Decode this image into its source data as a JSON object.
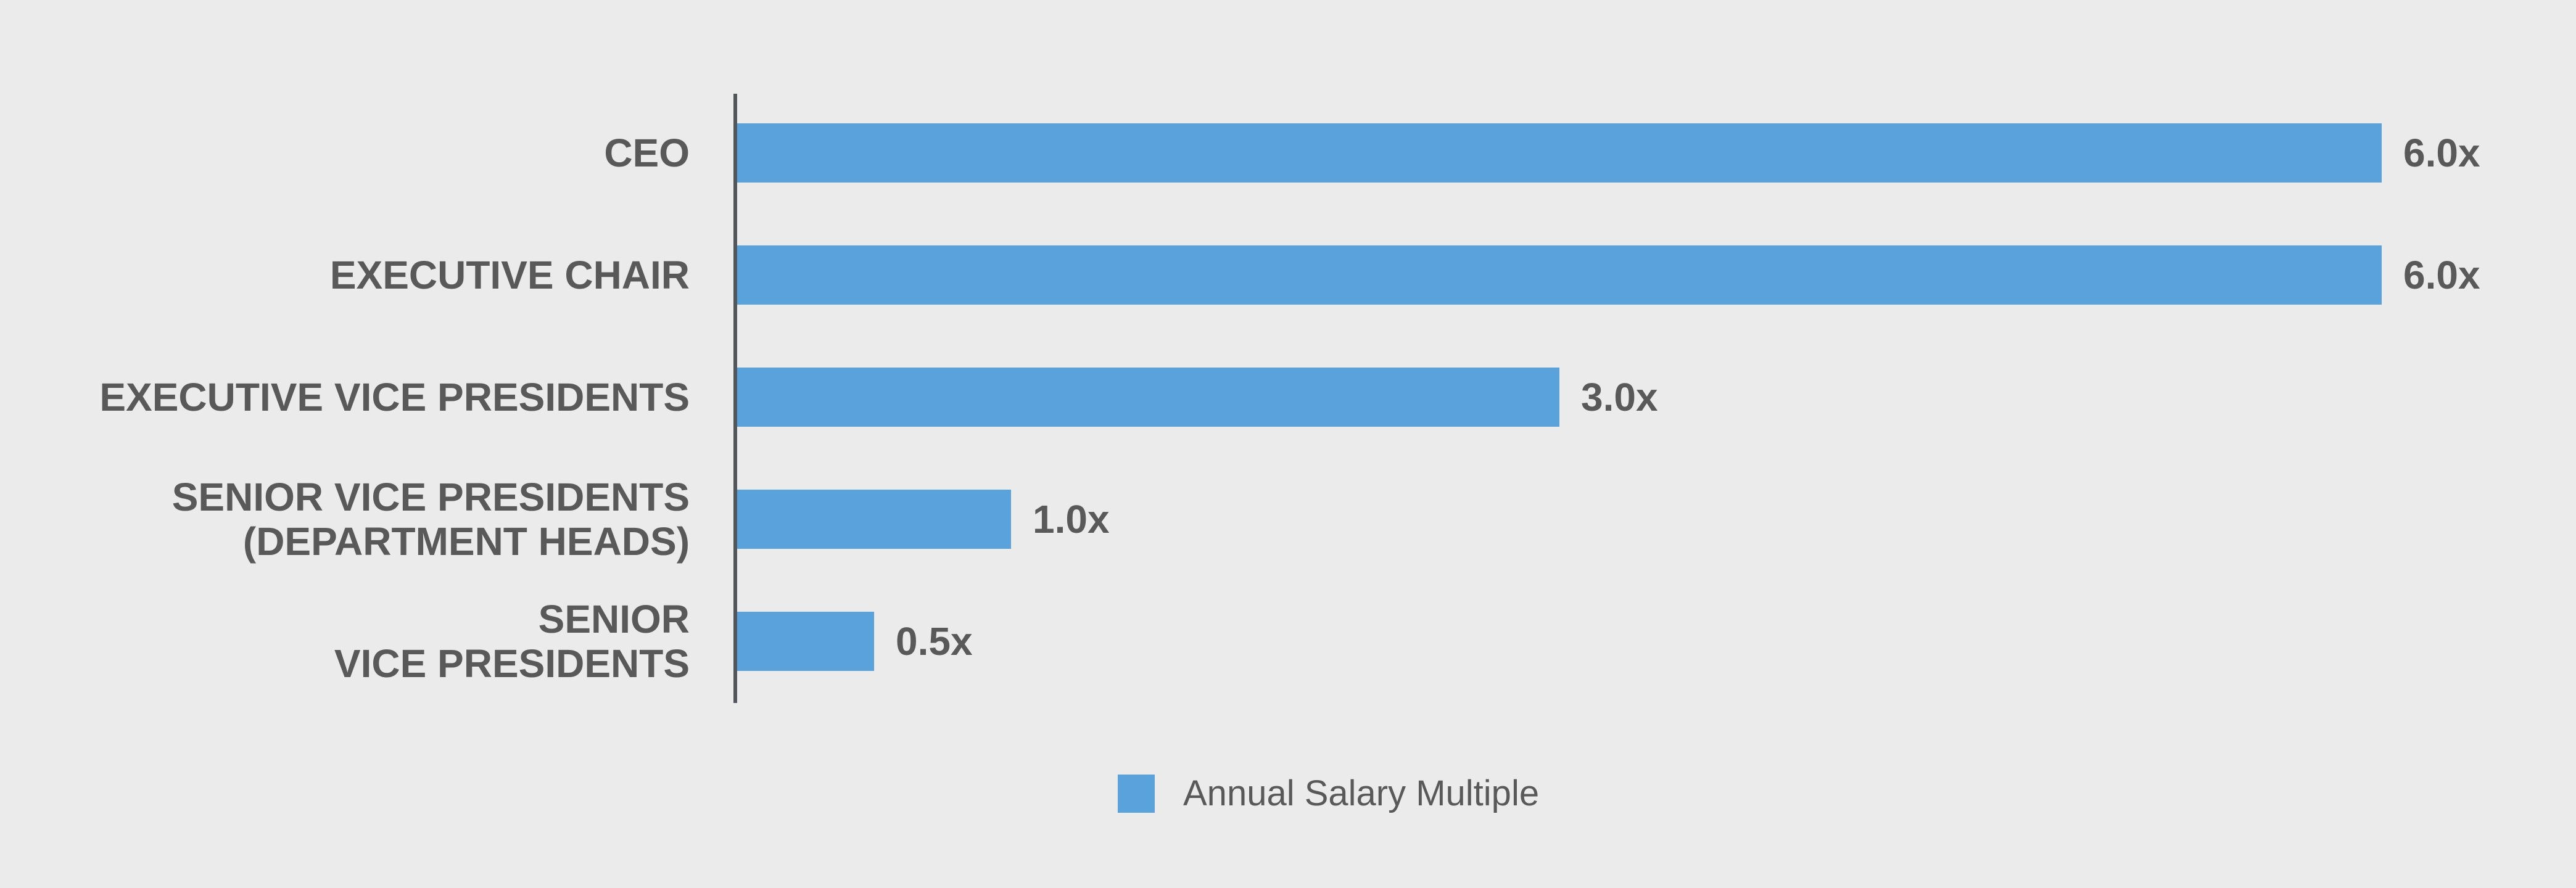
{
  "chart_data": {
    "type": "bar",
    "orientation": "horizontal",
    "title": "",
    "categories": [
      "CEO",
      "EXECUTIVE CHAIR",
      "EXECUTIVE VICE PRESIDENTS",
      "SENIOR VICE PRESIDENTS (DEPARTMENT HEADS)",
      "SENIOR VICE PRESIDENTS"
    ],
    "category_lines": [
      [
        "CEO"
      ],
      [
        "EXECUTIVE CHAIR"
      ],
      [
        "EXECUTIVE VICE PRESIDENTS"
      ],
      [
        "SENIOR VICE PRESIDENTS",
        "(DEPARTMENT HEADS)"
      ],
      [
        "SENIOR",
        "VICE PRESIDENTS"
      ]
    ],
    "series": [
      {
        "name": "Annual Salary Multiple",
        "values": [
          6.0,
          6.0,
          3.0,
          1.0,
          0.5
        ],
        "value_labels": [
          "6.0x",
          "6.0x",
          "3.0x",
          "1.0x",
          "0.5x"
        ]
      }
    ],
    "xlabel": "",
    "ylabel": "",
    "xlim": [
      0,
      6
    ],
    "grid": false,
    "axis_ticks_visible": false,
    "legend_position": "bottom-center",
    "colors": {
      "bar": "#5AA2DC",
      "text": "#595959",
      "axis_line": "#53565A",
      "background": "#EBEBEB"
    }
  },
  "legend": {
    "label": "Annual Salary Multiple"
  }
}
